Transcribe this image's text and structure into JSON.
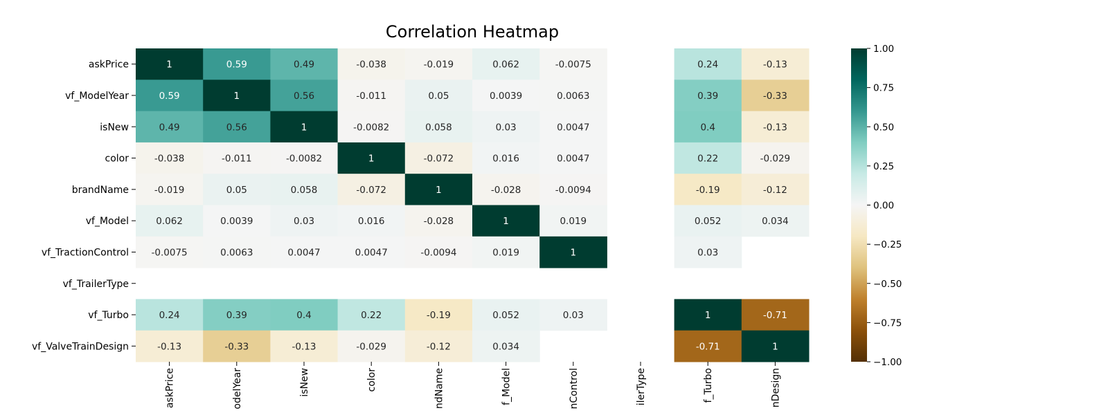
{
  "chart_data": {
    "type": "heatmap",
    "title": "Correlation Heatmap",
    "variables": [
      "askPrice",
      "vf_ModelYear",
      "isNew",
      "color",
      "brandName",
      "vf_Model",
      "vf_TractionControl",
      "vf_TrailerType",
      "vf_Turbo",
      "vf_ValveTrainDesign"
    ],
    "x_tick_labels": [
      "askPrice",
      "odelYear",
      "isNew",
      "color",
      "ndName",
      "f_Model",
      "nControl",
      "ilerType",
      "f_Turbo",
      "nDesign"
    ],
    "matrix": [
      [
        1,
        0.59,
        0.49,
        -0.038,
        -0.019,
        0.062,
        -0.0075,
        null,
        0.24,
        -0.13
      ],
      [
        0.59,
        1,
        0.56,
        -0.011,
        0.05,
        0.0039,
        0.0063,
        null,
        0.39,
        -0.33
      ],
      [
        0.49,
        0.56,
        1,
        -0.0082,
        0.058,
        0.03,
        0.0047,
        null,
        0.4,
        -0.13
      ],
      [
        -0.038,
        -0.011,
        -0.0082,
        1,
        -0.072,
        0.016,
        0.0047,
        null,
        0.22,
        -0.029
      ],
      [
        -0.019,
        0.05,
        0.058,
        -0.072,
        1,
        -0.028,
        -0.0094,
        null,
        -0.19,
        -0.12
      ],
      [
        0.062,
        0.0039,
        0.03,
        0.016,
        -0.028,
        1,
        0.019,
        null,
        0.052,
        0.034
      ],
      [
        -0.0075,
        0.0063,
        0.0047,
        0.0047,
        -0.0094,
        0.019,
        1,
        null,
        0.03,
        null
      ],
      [
        null,
        null,
        null,
        null,
        null,
        null,
        null,
        null,
        null,
        null
      ],
      [
        0.24,
        0.39,
        0.4,
        0.22,
        -0.19,
        0.052,
        0.03,
        null,
        1,
        -0.71
      ],
      [
        -0.13,
        -0.33,
        -0.13,
        -0.029,
        -0.12,
        0.034,
        null,
        null,
        -0.71,
        1
      ]
    ],
    "colormap": "BrBG",
    "vmin": -1,
    "vmax": 1,
    "colorbar_ticks": [
      1.0,
      0.75,
      0.5,
      0.25,
      0.0,
      -0.25,
      -0.5,
      -0.75,
      -1.0
    ],
    "colorbar_tick_labels": [
      "1.00",
      "0.75",
      "0.50",
      "0.25",
      "0.00",
      "−0.25",
      "−0.50",
      "−0.75",
      "−1.00"
    ],
    "annotate": true,
    "grid": false
  }
}
